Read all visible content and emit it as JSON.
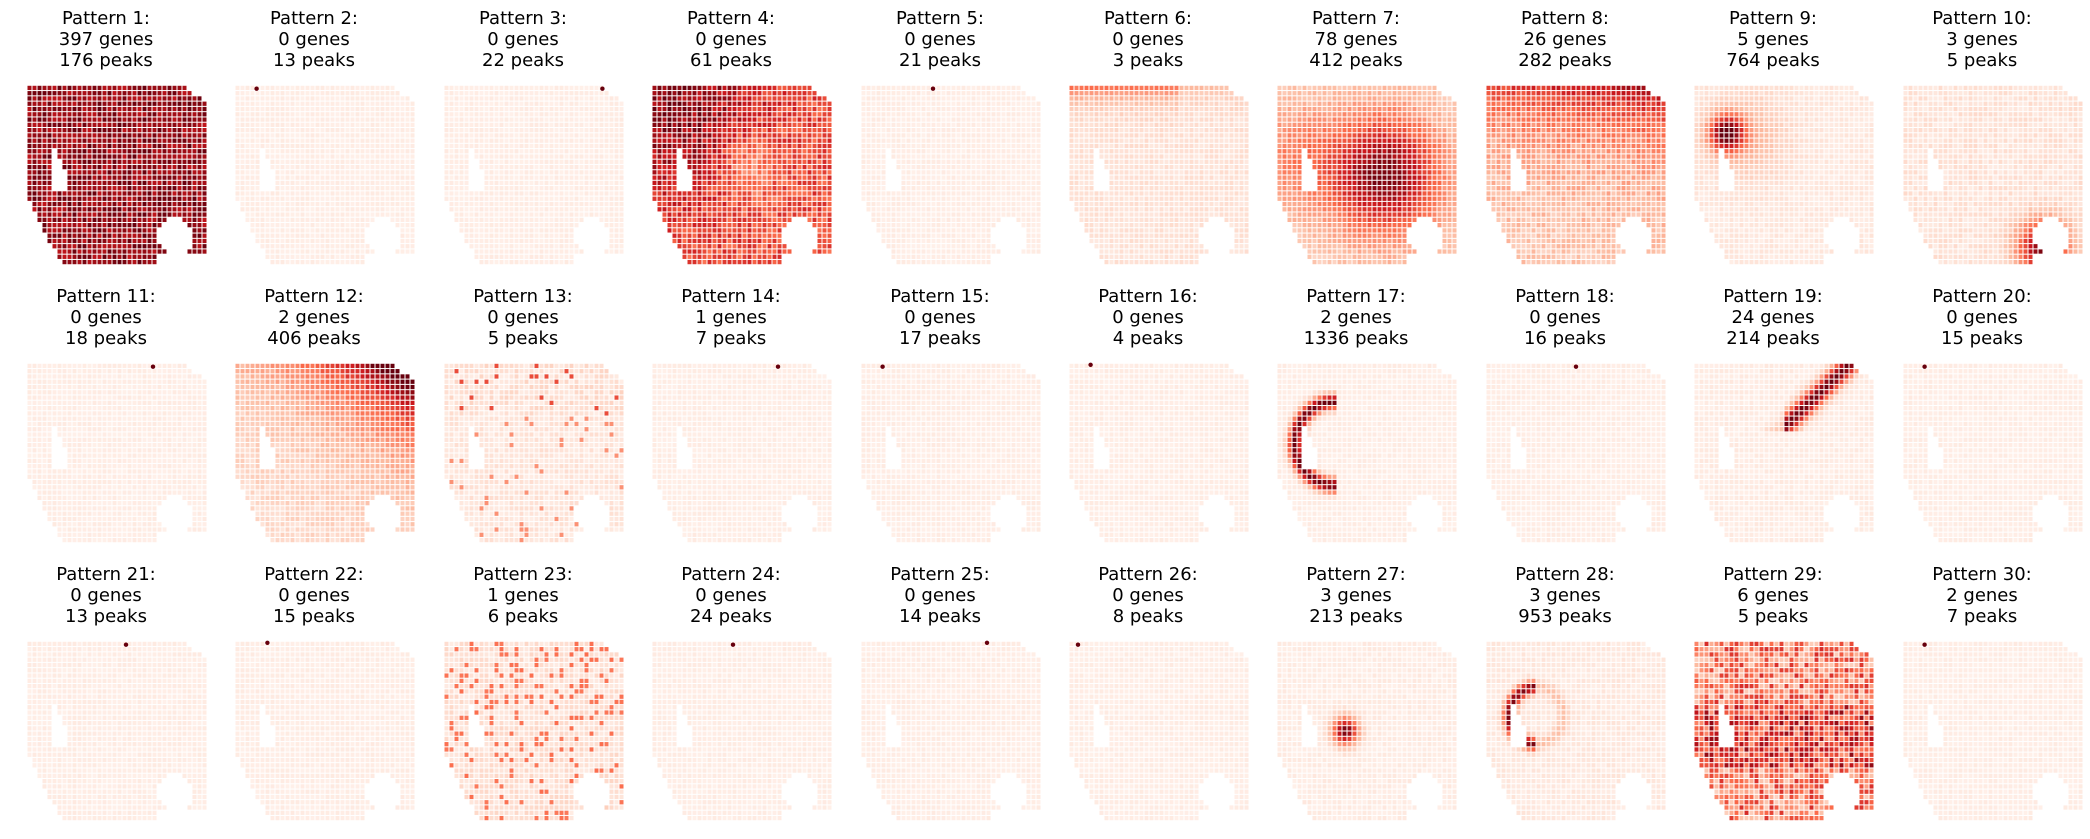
{
  "chart_data": {
    "type": "heatmap",
    "colormap": "Reds",
    "colors": [
      "#fff5f0",
      "#fcbba1",
      "#fb6a4a",
      "#cb181d",
      "#67000d"
    ],
    "panels": [
      {
        "title": "Pattern 1:",
        "genes": "397 genes",
        "peaks": "176 peaks",
        "style": "full"
      },
      {
        "title": "Pattern 2:",
        "genes": "0 genes",
        "peaks": "13 peaks",
        "style": "spot"
      },
      {
        "title": "Pattern 3:",
        "genes": "0 genes",
        "peaks": "22 peaks",
        "style": "spot"
      },
      {
        "title": "Pattern 4:",
        "genes": "0 genes",
        "peaks": "61 peaks",
        "style": "broad"
      },
      {
        "title": "Pattern 5:",
        "genes": "0 genes",
        "peaks": "21 peaks",
        "style": "spot"
      },
      {
        "title": "Pattern 6:",
        "genes": "0 genes",
        "peaks": "3 peaks",
        "style": "top-edge"
      },
      {
        "title": "Pattern 7:",
        "genes": "78 genes",
        "peaks": "412 peaks",
        "style": "center"
      },
      {
        "title": "Pattern 8:",
        "genes": "26 genes",
        "peaks": "282 peaks",
        "style": "top-band"
      },
      {
        "title": "Pattern 9:",
        "genes": "5 genes",
        "peaks": "764 peaks",
        "style": "left-blob"
      },
      {
        "title": "Pattern 10:",
        "genes": "3 genes",
        "peaks": "5 peaks",
        "style": "bottom-arc"
      },
      {
        "title": "Pattern 11:",
        "genes": "0 genes",
        "peaks": "18 peaks",
        "style": "spot"
      },
      {
        "title": "Pattern 12:",
        "genes": "2 genes",
        "peaks": "406 peaks",
        "style": "top-right"
      },
      {
        "title": "Pattern 13:",
        "genes": "0 genes",
        "peaks": "5 peaks",
        "style": "speckle"
      },
      {
        "title": "Pattern 14:",
        "genes": "1 genes",
        "peaks": "7 peaks",
        "style": "spot"
      },
      {
        "title": "Pattern 15:",
        "genes": "0 genes",
        "peaks": "17 peaks",
        "style": "spot"
      },
      {
        "title": "Pattern 16:",
        "genes": "0 genes",
        "peaks": "4 peaks",
        "style": "spot"
      },
      {
        "title": "Pattern 17:",
        "genes": "2 genes",
        "peaks": "1336 peaks",
        "style": "left-arc"
      },
      {
        "title": "Pattern 18:",
        "genes": "0 genes",
        "peaks": "16 peaks",
        "style": "spot"
      },
      {
        "title": "Pattern 19:",
        "genes": "24 genes",
        "peaks": "214 peaks",
        "style": "top-right-band"
      },
      {
        "title": "Pattern 20:",
        "genes": "0 genes",
        "peaks": "15 peaks",
        "style": "spot"
      },
      {
        "title": "Pattern 21:",
        "genes": "0 genes",
        "peaks": "13 peaks",
        "style": "spot"
      },
      {
        "title": "Pattern 22:",
        "genes": "0 genes",
        "peaks": "15 peaks",
        "style": "spot"
      },
      {
        "title": "Pattern 23:",
        "genes": "1 genes",
        "peaks": "6 peaks",
        "style": "speckle-strong"
      },
      {
        "title": "Pattern 24:",
        "genes": "0 genes",
        "peaks": "24 peaks",
        "style": "spot"
      },
      {
        "title": "Pattern 25:",
        "genes": "0 genes",
        "peaks": "14 peaks",
        "style": "spot"
      },
      {
        "title": "Pattern 26:",
        "genes": "0 genes",
        "peaks": "8 peaks",
        "style": "spot"
      },
      {
        "title": "Pattern 27:",
        "genes": "3 genes",
        "peaks": "213 peaks",
        "style": "center-dot"
      },
      {
        "title": "Pattern 28:",
        "genes": "3 genes",
        "peaks": "953 peaks",
        "style": "left-crescent"
      },
      {
        "title": "Pattern 29:",
        "genes": "6 genes",
        "peaks": "5 peaks",
        "style": "speckle-full"
      },
      {
        "title": "Pattern 30:",
        "genes": "2 genes",
        "peaks": "7 peaks",
        "style": "spot"
      }
    ]
  }
}
